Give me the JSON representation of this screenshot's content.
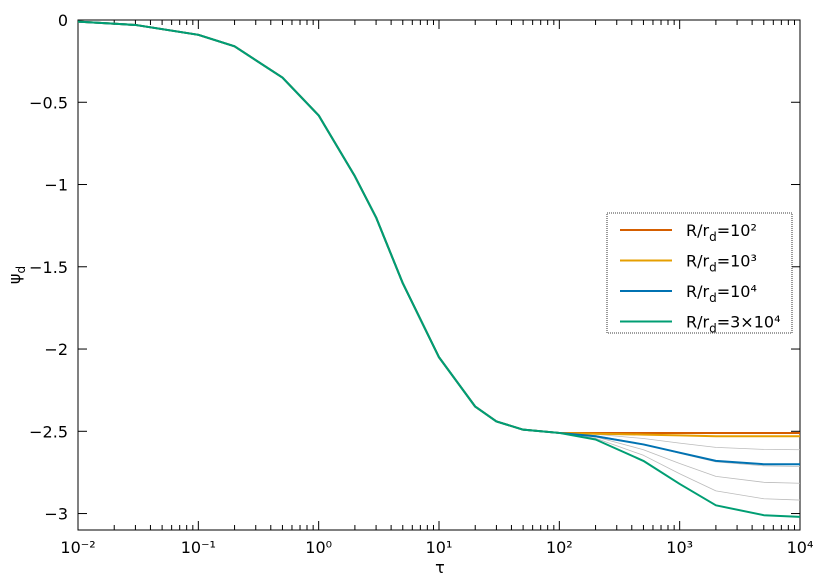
{
  "chart_data": {
    "type": "line",
    "x_label": "τ",
    "y_label": "ψd",
    "x": [
      0.01,
      0.03,
      0.1,
      0.2,
      0.5,
      1,
      2,
      3,
      5,
      10,
      20,
      30,
      50,
      100,
      200,
      500,
      1000,
      2000,
      5000,
      10000
    ],
    "xlim": [
      0.01,
      10000
    ],
    "ylim": [
      -3.1,
      0
    ],
    "log_x": true,
    "xticks": [
      {
        "value": 0.01,
        "label": "10⁻²"
      },
      {
        "value": 0.1,
        "label": "10⁻¹"
      },
      {
        "value": 1,
        "label": "10⁰"
      },
      {
        "value": 10,
        "label": "10¹"
      },
      {
        "value": 100,
        "label": "10²"
      },
      {
        "value": 1000,
        "label": "10³"
      },
      {
        "value": 10000,
        "label": "10⁴"
      }
    ],
    "yticks": [
      0,
      {
        "value": -0.5,
        "label": "−0.5"
      },
      {
        "value": -1,
        "label": "−1"
      },
      {
        "value": -1.5,
        "label": "−1.5"
      },
      {
        "value": -2,
        "label": "−2"
      },
      {
        "value": -2.5,
        "label": "−2.5"
      },
      {
        "value": -3,
        "label": "−3"
      }
    ],
    "background_series": [
      {
        "color": "#bbbbbb",
        "values": [
          -0.01,
          -0.03,
          -0.09,
          -0.16,
          -0.35,
          -0.58,
          -0.95,
          -1.2,
          -1.6,
          -2.05,
          -2.35,
          -2.44,
          -2.49,
          -2.51,
          -2.518,
          -2.544,
          -2.572,
          -2.598,
          -2.61,
          -2.612
        ]
      },
      {
        "color": "#bbbbbb",
        "values": [
          -0.01,
          -0.03,
          -0.09,
          -0.16,
          -0.35,
          -0.58,
          -0.95,
          -1.2,
          -1.6,
          -2.05,
          -2.35,
          -2.44,
          -2.49,
          -2.51,
          -2.526,
          -2.578,
          -2.634,
          -2.686,
          -2.71,
          -2.714
        ]
      },
      {
        "color": "#bbbbbb",
        "values": [
          -0.01,
          -0.03,
          -0.09,
          -0.16,
          -0.35,
          -0.58,
          -0.95,
          -1.2,
          -1.6,
          -2.05,
          -2.35,
          -2.44,
          -2.49,
          -2.51,
          -2.534,
          -2.612,
          -2.696,
          -2.774,
          -2.81,
          -2.816
        ]
      },
      {
        "color": "#bbbbbb",
        "values": [
          -0.01,
          -0.03,
          -0.09,
          -0.16,
          -0.35,
          -0.58,
          -0.95,
          -1.2,
          -1.6,
          -2.05,
          -2.35,
          -2.44,
          -2.49,
          -2.51,
          -2.542,
          -2.646,
          -2.758,
          -2.862,
          -2.91,
          -2.918
        ]
      }
    ],
    "series": [
      {
        "name": "R/rd=10²",
        "color": "#d55e00",
        "values": [
          -0.01,
          -0.03,
          -0.09,
          -0.16,
          -0.35,
          -0.58,
          -0.95,
          -1.2,
          -1.6,
          -2.05,
          -2.35,
          -2.44,
          -2.49,
          -2.51,
          -2.51,
          -2.51,
          -2.51,
          -2.51,
          -2.51,
          -2.51
        ]
      },
      {
        "name": "R/rd=10³",
        "color": "#e69f00",
        "values": [
          -0.01,
          -0.03,
          -0.09,
          -0.16,
          -0.35,
          -0.58,
          -0.95,
          -1.2,
          -1.6,
          -2.05,
          -2.35,
          -2.44,
          -2.49,
          -2.51,
          -2.515,
          -2.52,
          -2.525,
          -2.53,
          -2.53,
          -2.53
        ]
      },
      {
        "name": "R/rd=10⁴",
        "color": "#0072b2",
        "values": [
          -0.01,
          -0.03,
          -0.09,
          -0.16,
          -0.35,
          -0.58,
          -0.95,
          -1.2,
          -1.6,
          -2.05,
          -2.35,
          -2.44,
          -2.49,
          -2.51,
          -2.53,
          -2.58,
          -2.63,
          -2.68,
          -2.7,
          -2.7
        ]
      },
      {
        "name": "R/rd=3×10⁴",
        "color": "#009e73",
        "values": [
          -0.01,
          -0.03,
          -0.09,
          -0.16,
          -0.35,
          -0.58,
          -0.95,
          -1.2,
          -1.6,
          -2.05,
          -2.35,
          -2.44,
          -2.49,
          -2.51,
          -2.55,
          -2.68,
          -2.82,
          -2.95,
          -3.01,
          -3.02
        ]
      }
    ],
    "legend": "right"
  }
}
